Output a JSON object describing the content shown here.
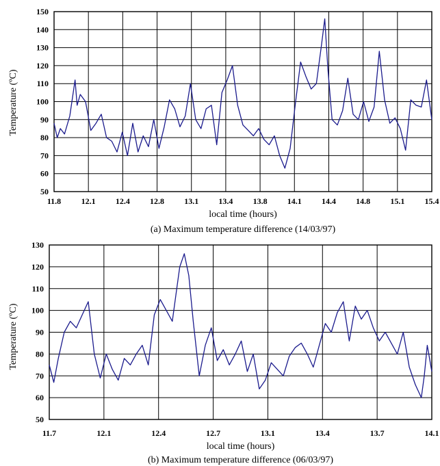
{
  "chart_data": [
    {
      "type": "line",
      "panel": "a",
      "caption": "(a) Maximum temperature difference (14/03/97)",
      "xlabel": "local time (hours)",
      "ylabel": "Temperature (ºC)",
      "xlim": [
        11.8,
        15.4
      ],
      "ylim": [
        50,
        150
      ],
      "xticks": [
        "11.8",
        "12.1",
        "12.4",
        "12.8",
        "13.1",
        "13.4",
        "13.8",
        "14.1",
        "14.4",
        "14.8",
        "15.1",
        "15.4"
      ],
      "yticks": [
        "50",
        "60",
        "70",
        "80",
        "90",
        "100",
        "110",
        "120",
        "130",
        "140",
        "150"
      ],
      "grid": true,
      "line_color": "#1a1a8c",
      "series": [
        {
          "x": [
            11.8,
            11.83,
            11.86,
            11.9,
            11.95,
            12.0,
            12.02,
            12.05,
            12.1,
            12.15,
            12.2,
            12.25,
            12.3,
            12.35,
            12.4,
            12.45,
            12.5,
            12.55,
            12.6,
            12.65,
            12.7,
            12.75,
            12.8,
            12.85,
            12.9,
            12.95,
            13.0,
            13.05,
            13.1,
            13.15,
            13.2,
            13.25,
            13.3,
            13.35,
            13.4,
            13.45,
            13.5,
            13.55,
            13.6,
            13.65,
            13.7,
            13.75,
            13.8,
            13.85,
            13.9,
            13.95,
            14.0,
            14.05,
            14.1,
            14.15,
            14.2,
            14.25,
            14.3,
            14.35,
            14.38,
            14.41,
            14.45,
            14.5,
            14.55,
            14.6,
            14.65,
            14.7,
            14.75,
            14.8,
            14.85,
            14.9,
            14.95,
            15.0,
            15.05,
            15.1,
            15.15,
            15.2,
            15.25,
            15.3,
            15.35,
            15.4
          ],
          "y": [
            88,
            80,
            85,
            82,
            92,
            112,
            98,
            104,
            100,
            84,
            88,
            93,
            80,
            78,
            72,
            83,
            70,
            88,
            72,
            81,
            75,
            90,
            74,
            86,
            101,
            96,
            86,
            92,
            110,
            90,
            85,
            96,
            98,
            76,
            105,
            112,
            120,
            98,
            87,
            84,
            81,
            85,
            79,
            76,
            81,
            70,
            63,
            74,
            99,
            122,
            114,
            107,
            110,
            132,
            146,
            118,
            90,
            87,
            95,
            113,
            93,
            90,
            100,
            89,
            97,
            128,
            101,
            88,
            91,
            85,
            73,
            101,
            98,
            97,
            112,
            90
          ]
        }
      ]
    },
    {
      "type": "line",
      "panel": "b",
      "caption": "(b) Maximum temperature difference (06/03/97)",
      "xlabel": "local time (hours)",
      "ylabel": "Temperature (ºC)",
      "xlim": [
        11.7,
        14.25
      ],
      "ylim": [
        50,
        130
      ],
      "xticks": [
        "11.7",
        "12.1",
        "12.4",
        "12.7",
        "13.1",
        "13.4",
        "13.7",
        "14.1"
      ],
      "yticks": [
        "50",
        "60",
        "70",
        "80",
        "90",
        "100",
        "110",
        "120",
        "130"
      ],
      "grid": true,
      "line_color": "#1a1a8c",
      "series": [
        {
          "x": [
            11.7,
            11.73,
            11.76,
            11.8,
            11.84,
            11.88,
            11.92,
            11.96,
            12.0,
            12.04,
            12.08,
            12.12,
            12.16,
            12.2,
            12.24,
            12.28,
            12.32,
            12.36,
            12.4,
            12.44,
            12.48,
            12.52,
            12.55,
            12.57,
            12.6,
            12.63,
            12.66,
            12.7,
            12.74,
            12.78,
            12.82,
            12.86,
            12.9,
            12.94,
            12.98,
            13.02,
            13.06,
            13.1,
            13.14,
            13.18,
            13.22,
            13.26,
            13.3,
            13.34,
            13.38,
            13.42,
            13.46,
            13.5,
            13.54,
            13.58,
            13.62,
            13.66,
            13.7,
            13.74,
            13.78,
            13.82,
            13.86,
            13.9,
            13.94,
            13.98,
            14.02,
            14.06,
            14.1,
            14.14,
            14.18,
            14.2,
            14.22,
            14.25
          ],
          "y": [
            75,
            67,
            78,
            90,
            95,
            92,
            98,
            104,
            80,
            69,
            80,
            73,
            68,
            78,
            75,
            80,
            84,
            75,
            98,
            105,
            100,
            95,
            110,
            120,
            126,
            116,
            95,
            70,
            84,
            92,
            77,
            82,
            75,
            80,
            86,
            72,
            80,
            64,
            68,
            76,
            73,
            70,
            79,
            83,
            85,
            80,
            74,
            84,
            94,
            90,
            99,
            104,
            86,
            102,
            96,
            100,
            92,
            86,
            90,
            85,
            80,
            90,
            74,
            66,
            60,
            70,
            84,
            72
          ]
        }
      ]
    }
  ]
}
